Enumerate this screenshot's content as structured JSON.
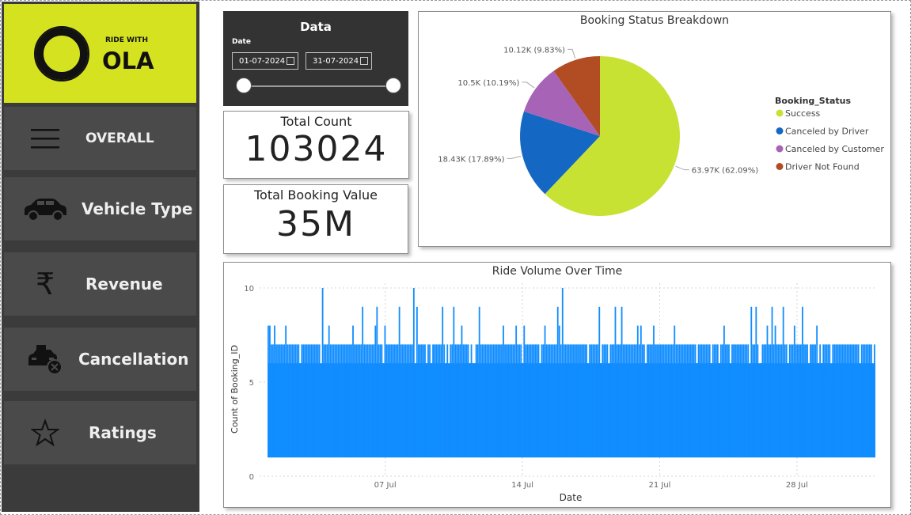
{
  "sidebar": {
    "logo": {
      "small_text": "RIDE WITH",
      "brand": "OLA"
    },
    "items": [
      {
        "label": "OVERALL",
        "icon": "hamburger-menu-icon"
      },
      {
        "label": "Vehicle Type",
        "icon": "car-icon"
      },
      {
        "label": "Revenue",
        "icon": "rupee-icon"
      },
      {
        "label": "Cancellation",
        "icon": "taxi-cancel-icon"
      },
      {
        "label": "Ratings",
        "icon": "star-icon"
      }
    ]
  },
  "filter": {
    "title": "Data",
    "date_label": "Date",
    "start_date": "01-07-2024",
    "end_date": "31-07-2024",
    "calendar_icon": "calendar-icon"
  },
  "kpis": {
    "total_count": {
      "label": "Total Count",
      "value": "103024"
    },
    "total_booking_value": {
      "label": "Total Booking Value",
      "value": "35M"
    }
  },
  "colors": {
    "brand_lime": "#d5e21f",
    "sidebar_bg": "#3b3b3b",
    "nav_item_bg": "#4a4a4a",
    "success": "#c8e234",
    "canceled_by_driver": "#1468c4",
    "canceled_by_customer": "#a763b6",
    "driver_not_found": "#b24d23",
    "bar_blue": "#118dff"
  },
  "chart_data": [
    {
      "type": "pie",
      "title": "Booking Status Breakdown",
      "legend_title": "Booking_Status",
      "legend_position": "right",
      "slices": [
        {
          "name": "Success",
          "value": 63970,
          "label": "63.97K (62.09%)",
          "color": "#c8e234"
        },
        {
          "name": "Canceled by Driver",
          "value": 18430,
          "label": "18.43K (17.89%)",
          "color": "#1468c4"
        },
        {
          "name": "Canceled by Customer",
          "value": 10500,
          "label": "10.5K (10.19%)",
          "color": "#a763b6"
        },
        {
          "name": "Driver Not Found",
          "value": 10120,
          "label": "10.12K (9.83%)",
          "color": "#b24d23"
        }
      ]
    },
    {
      "type": "bar",
      "title": "Ride Volume Over Time",
      "xlabel": "Date",
      "ylabel": "Count of Booking_ID",
      "ylim": [
        0,
        10
      ],
      "yticks": [
        0,
        5,
        10
      ],
      "x_range": [
        "2024-07-01",
        "2024-07-31"
      ],
      "xticks": [
        "07 Jul",
        "14 Jul",
        "21 Jul",
        "28 Jul"
      ],
      "xtick_dates": [
        "2024-07-07",
        "2024-07-14",
        "2024-07-21",
        "2024-07-28"
      ],
      "typical_max": 7,
      "min_value": 1,
      "grid": true,
      "color": "#118dff"
    }
  ]
}
